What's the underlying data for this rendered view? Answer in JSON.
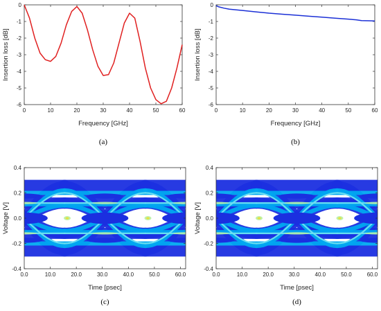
{
  "chart_data": [
    {
      "type": "line",
      "caption": "(a)",
      "xlabel": "Frequency [GHz]",
      "ylabel": "Insertion loss [dB]",
      "xlim": [
        0,
        60
      ],
      "ylim": [
        -6,
        0
      ],
      "xticks": [
        0,
        10,
        20,
        30,
        40,
        50,
        60
      ],
      "yticks": [
        0,
        -1,
        -2,
        -3,
        -4,
        -5,
        -6
      ],
      "grid": false,
      "series": [
        {
          "color": "#e02020",
          "x": [
            0,
            2,
            4,
            6,
            8,
            10,
            12,
            14,
            16,
            18,
            20,
            22,
            24,
            26,
            28,
            30,
            32,
            34,
            36,
            38,
            40,
            42,
            44,
            46,
            48,
            50,
            52,
            54,
            56,
            58,
            60
          ],
          "y": [
            0.0,
            -0.8,
            -2.0,
            -2.9,
            -3.3,
            -3.4,
            -3.1,
            -2.3,
            -1.2,
            -0.4,
            -0.1,
            -0.5,
            -1.5,
            -2.7,
            -3.7,
            -4.25,
            -4.2,
            -3.5,
            -2.3,
            -1.1,
            -0.5,
            -0.8,
            -2.2,
            -3.8,
            -5.0,
            -5.7,
            -5.95,
            -5.8,
            -5.0,
            -3.8,
            -2.4
          ]
        }
      ]
    },
    {
      "type": "line",
      "caption": "(b)",
      "xlabel": "Frequency [GHz]",
      "ylabel": "Insertion loss [dB]",
      "xlim": [
        0,
        60
      ],
      "ylim": [
        -6,
        0
      ],
      "xticks": [
        0,
        10,
        20,
        30,
        40,
        50,
        60
      ],
      "yticks": [
        0,
        -1,
        -2,
        -3,
        -4,
        -5,
        -6
      ],
      "grid": false,
      "series": [
        {
          "color": "#1a2fd6",
          "x": [
            0,
            1,
            3,
            5,
            10,
            15,
            20,
            25,
            30,
            35,
            40,
            45,
            50,
            53,
            55,
            58,
            60
          ],
          "y": [
            -0.05,
            -0.12,
            -0.2,
            -0.26,
            -0.34,
            -0.42,
            -0.5,
            -0.56,
            -0.62,
            -0.68,
            -0.74,
            -0.8,
            -0.86,
            -0.9,
            -0.95,
            -0.96,
            -0.97
          ]
        }
      ]
    },
    {
      "type": "heatmap",
      "subtype": "eye diagram",
      "caption": "(c)",
      "xlabel": "Time [psec]",
      "ylabel": "Voltage [V]",
      "xlim": [
        0,
        62
      ],
      "ylim": [
        -0.4,
        0.4
      ],
      "xticks": [
        "0.0",
        "10.0",
        "20.0",
        "30.0",
        "40.0",
        "50.0",
        "60.0"
      ],
      "yticks": [
        "0.4",
        "0.2",
        "0.0",
        "-0.2",
        "-0.4"
      ],
      "colors": [
        "#1b2fe0",
        "#00a8f0",
        "#6ee0f0",
        "#b8f0a0",
        "#e8e040"
      ]
    },
    {
      "type": "heatmap",
      "subtype": "eye diagram",
      "caption": "(d)",
      "xlabel": "Time [psec]",
      "ylabel": "Voltage [V]",
      "xlim": [
        0,
        62
      ],
      "ylim": [
        -0.4,
        0.4
      ],
      "xticks": [
        "0.0",
        "10.0",
        "20.0",
        "30.0",
        "40.0",
        "50.0",
        "60.0"
      ],
      "yticks": [
        "0.4",
        "0.2",
        "0.0",
        "-0.2",
        "-0.4"
      ],
      "colors": [
        "#1b2fe0",
        "#00a8f0",
        "#6ee0f0",
        "#b8f0a0",
        "#e8e040"
      ]
    }
  ]
}
